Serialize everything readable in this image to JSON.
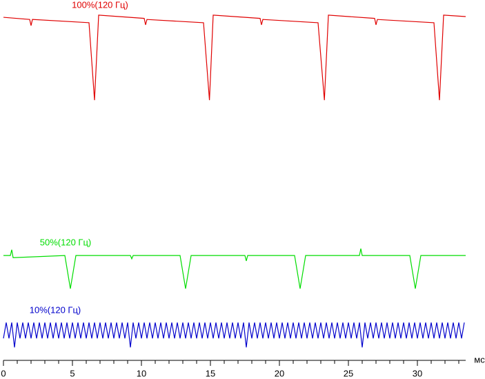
{
  "chart_data": {
    "type": "line",
    "x_label": "мс",
    "xlim": [
      0,
      33.5
    ],
    "xticks": [
      0,
      5,
      10,
      15,
      20,
      25,
      30
    ],
    "xminorticks": [
      1,
      2,
      3,
      4,
      6,
      7,
      8,
      9,
      11,
      12,
      13,
      14,
      16,
      17,
      18,
      19,
      21,
      22,
      23,
      24,
      26,
      27,
      28,
      29,
      31,
      32,
      33
    ],
    "ylim": [
      0,
      100
    ],
    "series": [
      {
        "name": "100%(120 Гц)",
        "color": "#e00000",
        "x": [
          0,
          1.9,
          2.0,
          2.1,
          6.2,
          6.6,
          6.9,
          10.2,
          10.3,
          10.4,
          14.5,
          14.93,
          15.2,
          18.6,
          18.7,
          18.8,
          22.8,
          23.26,
          23.55,
          26.9,
          27.0,
          27.1,
          31.2,
          31.6,
          31.9,
          33.5
        ],
        "values": [
          95.2,
          94.6,
          92.9,
          94.6,
          93.7,
          72.2,
          95.8,
          94.9,
          93.1,
          94.6,
          93.7,
          72.2,
          95.8,
          94.9,
          93.1,
          94.6,
          93.7,
          72.2,
          95.8,
          94.9,
          93.1,
          94.6,
          93.7,
          72.2,
          95.8,
          95.4
        ]
      },
      {
        "name": "50%(120 Гц)",
        "color": "#00dd00",
        "x": [
          0,
          0.5,
          0.6,
          0.7,
          4.45,
          4.85,
          5.25,
          9.2,
          9.3,
          9.4,
          12.8,
          13.2,
          13.6,
          17.5,
          17.6,
          17.7,
          21.1,
          21.5,
          21.9,
          25.8,
          25.9,
          26.0,
          29.45,
          29.85,
          30.25,
          33.5
        ],
        "values": [
          29.1,
          29.1,
          30.7,
          28.5,
          29.1,
          19.9,
          29.1,
          29.1,
          28.2,
          29.1,
          29.1,
          19.9,
          29.1,
          29.1,
          27.6,
          29.1,
          29.1,
          19.9,
          29.1,
          29.1,
          31.0,
          29.1,
          29.1,
          19.9,
          29.1,
          29.1
        ]
      },
      {
        "name": "10%(120 Гц)",
        "color": "#0000cc",
        "x": [
          0,
          0.2,
          0.4,
          0.6,
          0.8,
          1,
          1.2,
          1.4,
          1.6,
          1.8,
          2,
          2.2,
          2.4,
          2.6,
          2.8,
          3,
          3.2,
          3.4,
          3.6,
          3.8,
          4,
          4.2,
          4.4,
          4.6,
          4.8,
          5,
          5.2,
          5.4,
          5.6,
          5.8,
          6,
          6.2,
          6.4,
          6.6,
          6.8,
          7,
          7.2,
          7.4,
          7.6,
          7.8,
          8,
          8.2,
          8.4,
          8.6,
          8.8,
          9,
          9.2,
          9.4,
          9.6,
          9.8,
          10,
          10.2,
          10.4,
          10.6,
          10.8,
          11,
          11.2,
          11.4,
          11.6,
          11.8,
          12,
          12.2,
          12.4,
          12.6,
          12.8,
          13,
          13.2,
          13.4,
          13.6,
          13.8,
          14,
          14.2,
          14.4,
          14.6,
          14.8,
          15,
          15.2,
          15.4,
          15.6,
          15.8,
          16,
          16.2,
          16.4,
          16.6,
          16.8,
          17,
          17.2,
          17.4,
          17.6,
          17.8,
          18,
          18.2,
          18.4,
          18.6,
          18.8,
          19,
          19.2,
          19.4,
          19.6,
          19.8,
          20,
          20.2,
          20.4,
          20.6,
          20.8,
          21,
          21.2,
          21.4,
          21.6,
          21.8,
          22,
          22.2,
          22.4,
          22.6,
          22.8,
          23,
          23.2,
          23.4,
          23.6,
          23.8,
          24,
          24.2,
          24.4,
          24.6,
          24.8,
          25,
          25.2,
          25.4,
          25.6,
          25.8,
          26,
          26.2,
          26.4,
          26.6,
          26.8,
          27,
          27.2,
          27.4,
          27.6,
          27.8,
          28,
          28.2,
          28.4,
          28.6,
          28.8,
          29,
          29.2,
          29.4,
          29.6,
          29.8,
          30,
          30.2,
          30.4,
          30.6,
          30.8,
          31,
          31.2,
          31.4,
          31.6,
          31.8,
          32,
          32.2,
          32.4,
          32.6,
          32.8,
          33,
          33.2,
          33.4
        ],
        "values": [
          6.1,
          10.5,
          6.1,
          10.5,
          3.6,
          10.5,
          6.1,
          10.5,
          6.1,
          10.5,
          6.1,
          10.5,
          6.1,
          10.5,
          6.1,
          10.5,
          6.1,
          10.5,
          6.1,
          10.5,
          6.1,
          10.5,
          6.1,
          10.5,
          6.1,
          10.5,
          6.1,
          10.5,
          6.1,
          10.5,
          6.1,
          10.5,
          6.1,
          10.5,
          6.1,
          10.5,
          6.1,
          10.5,
          6.1,
          10.5,
          6.1,
          10.5,
          6.1,
          10.5,
          6.1,
          10.5,
          3.6,
          10.5,
          6.1,
          10.5,
          6.1,
          10.5,
          6.1,
          10.5,
          6.1,
          10.5,
          6.1,
          10.5,
          6.1,
          10.5,
          6.1,
          10.5,
          6.1,
          10.5,
          6.1,
          10.5,
          6.1,
          10.5,
          6.1,
          10.5,
          6.1,
          10.5,
          6.1,
          10.5,
          6.1,
          10.5,
          6.1,
          10.5,
          6.1,
          10.5,
          6.1,
          10.5,
          6.1,
          10.5,
          6.1,
          10.5,
          6.1,
          10.5,
          3.6,
          10.5,
          6.1,
          10.5,
          6.1,
          10.5,
          6.1,
          10.5,
          6.1,
          10.5,
          6.1,
          10.5,
          6.1,
          10.5,
          6.1,
          10.5,
          6.1,
          10.5,
          6.1,
          10.5,
          6.1,
          10.5,
          6.1,
          10.5,
          6.1,
          10.5,
          6.1,
          10.5,
          6.1,
          10.5,
          6.1,
          10.5,
          6.1,
          10.5,
          6.1,
          10.5,
          6.1,
          10.5,
          6.1,
          10.5,
          6.1,
          10.5,
          3.6,
          10.5,
          6.1,
          10.5,
          6.1,
          10.5,
          6.1,
          10.5,
          6.1,
          10.5,
          6.1,
          10.5,
          6.1,
          10.5,
          6.1,
          10.5,
          6.1,
          10.5,
          6.1,
          10.5,
          6.1,
          10.5,
          6.1,
          10.5,
          6.1,
          10.5,
          6.1,
          10.5,
          6.1,
          10.5,
          6.1,
          10.5,
          6.1,
          10.5,
          6.1,
          10.5,
          6.1,
          10.5
        ]
      }
    ]
  }
}
